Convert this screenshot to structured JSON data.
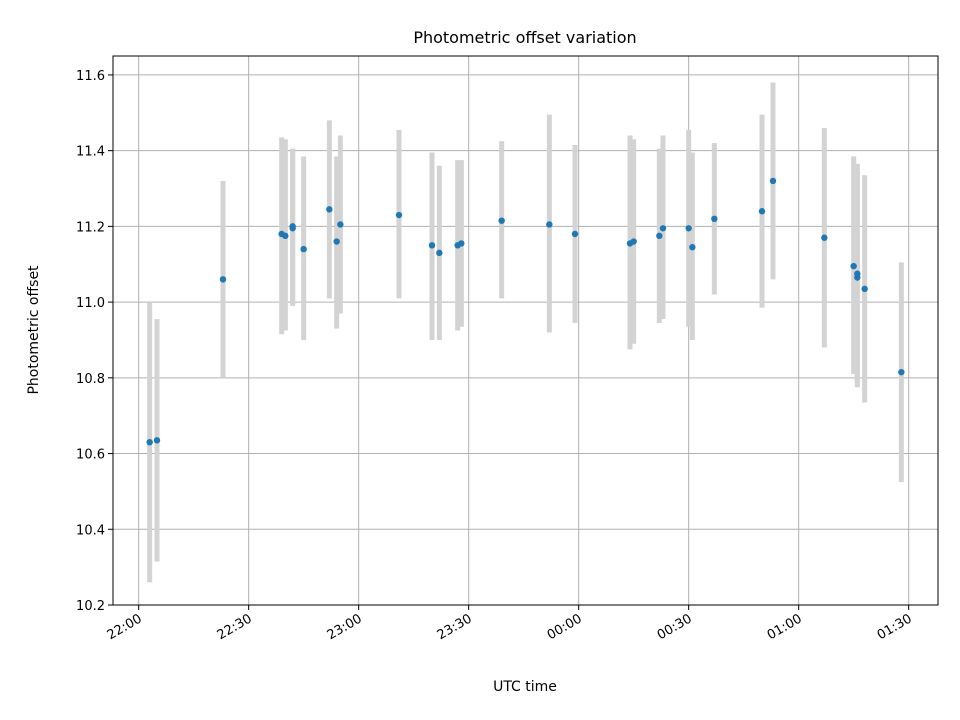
{
  "chart_data": {
    "type": "scatter",
    "title": "Photometric offset variation",
    "xlabel": "UTC time",
    "ylabel": "Photometric offset",
    "x_ticks": [
      "22:00",
      "22:30",
      "23:00",
      "23:30",
      "00:00",
      "00:30",
      "01:00",
      "01:30"
    ],
    "y_ticks": [
      "10.2",
      "10.4",
      "10.6",
      "10.8",
      "11.0",
      "11.2",
      "11.4",
      "11.6"
    ],
    "x_range": [
      "21:53",
      "01:38"
    ],
    "ylim": [
      10.2,
      11.65
    ],
    "grid": true,
    "x_tick_label_rotation": "slanted",
    "colors": {
      "points": "#1f77b4",
      "error_bars": "#d3d3d3",
      "grid": "#b0b0b0"
    },
    "points": [
      {
        "x": "22:03",
        "y": 10.63,
        "ylow": 10.26,
        "yhigh": 11.0
      },
      {
        "x": "22:05",
        "y": 10.635,
        "ylow": 10.315,
        "yhigh": 10.955
      },
      {
        "x": "22:23",
        "y": 11.06,
        "ylow": 10.8,
        "yhigh": 11.32
      },
      {
        "x": "22:39",
        "y": 11.18,
        "ylow": 10.915,
        "yhigh": 11.435
      },
      {
        "x": "22:40",
        "y": 11.175,
        "ylow": 10.925,
        "yhigh": 11.43
      },
      {
        "x": "22:42",
        "y": 11.195,
        "ylow": 10.99,
        "yhigh": 11.405
      },
      {
        "x": "22:42",
        "y": 11.2,
        "ylow": 10.995,
        "yhigh": 11.405
      },
      {
        "x": "22:45",
        "y": 11.14,
        "ylow": 10.9,
        "yhigh": 11.385
      },
      {
        "x": "22:52",
        "y": 11.245,
        "ylow": 11.01,
        "yhigh": 11.48
      },
      {
        "x": "22:54",
        "y": 11.16,
        "ylow": 10.93,
        "yhigh": 11.385
      },
      {
        "x": "22:55",
        "y": 11.205,
        "ylow": 10.97,
        "yhigh": 11.44
      },
      {
        "x": "23:11",
        "y": 11.23,
        "ylow": 11.01,
        "yhigh": 11.455
      },
      {
        "x": "23:20",
        "y": 11.15,
        "ylow": 10.9,
        "yhigh": 11.395
      },
      {
        "x": "23:22",
        "y": 11.13,
        "ylow": 10.9,
        "yhigh": 11.36
      },
      {
        "x": "23:27",
        "y": 11.15,
        "ylow": 10.925,
        "yhigh": 11.375
      },
      {
        "x": "23:28",
        "y": 11.155,
        "ylow": 10.935,
        "yhigh": 11.375
      },
      {
        "x": "23:39",
        "y": 11.215,
        "ylow": 11.01,
        "yhigh": 11.425
      },
      {
        "x": "23:52",
        "y": 11.205,
        "ylow": 10.92,
        "yhigh": 11.495
      },
      {
        "x": "23:59",
        "y": 11.18,
        "ylow": 10.945,
        "yhigh": 11.415
      },
      {
        "x": "00:14",
        "y": 11.155,
        "ylow": 10.875,
        "yhigh": 11.44
      },
      {
        "x": "00:15",
        "y": 11.16,
        "ylow": 10.89,
        "yhigh": 11.43
      },
      {
        "x": "00:22",
        "y": 11.175,
        "ylow": 10.945,
        "yhigh": 11.405
      },
      {
        "x": "00:23",
        "y": 11.195,
        "ylow": 10.955,
        "yhigh": 11.44
      },
      {
        "x": "00:30",
        "y": 11.195,
        "ylow": 10.935,
        "yhigh": 11.455
      },
      {
        "x": "00:31",
        "y": 11.145,
        "ylow": 10.9,
        "yhigh": 11.395
      },
      {
        "x": "00:37",
        "y": 11.22,
        "ylow": 11.02,
        "yhigh": 11.42
      },
      {
        "x": "00:50",
        "y": 11.24,
        "ylow": 10.985,
        "yhigh": 11.495
      },
      {
        "x": "00:53",
        "y": 11.32,
        "ylow": 11.06,
        "yhigh": 11.58
      },
      {
        "x": "01:07",
        "y": 11.17,
        "ylow": 10.88,
        "yhigh": 11.46
      },
      {
        "x": "01:15",
        "y": 11.095,
        "ylow": 10.81,
        "yhigh": 11.385
      },
      {
        "x": "01:16",
        "y": 11.075,
        "ylow": 10.785,
        "yhigh": 11.365
      },
      {
        "x": "01:16",
        "y": 11.065,
        "ylow": 10.775,
        "yhigh": 11.355
      },
      {
        "x": "01:18",
        "y": 11.035,
        "ylow": 10.735,
        "yhigh": 11.335
      },
      {
        "x": "01:28",
        "y": 10.815,
        "ylow": 10.525,
        "yhigh": 11.105
      }
    ]
  }
}
